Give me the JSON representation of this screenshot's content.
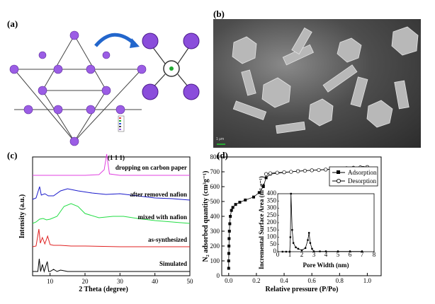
{
  "panels": {
    "a": "(a)",
    "b": "(b)",
    "c": "(c)",
    "d": "(d)"
  },
  "sem_scale": "1 μm",
  "chart_data": [
    {
      "type": "line",
      "panel": "c",
      "xlabel": "2 Theta (degree)",
      "ylabel": "Intensity (a.u.)",
      "xlim": [
        5,
        50
      ],
      "xticks": [
        10,
        20,
        30,
        40,
        50
      ],
      "series": [
        {
          "name": "dropping on carbon paper",
          "color": "#e040e0",
          "offset": 248,
          "x": [
            5,
            10,
            15,
            20,
            24,
            25.5,
            26.2,
            27,
            30,
            35,
            40,
            45,
            50
          ],
          "y": [
            0,
            0,
            0,
            0,
            1,
            8,
            30,
            2,
            0,
            0,
            0,
            0,
            0
          ]
        },
        {
          "name": "after removed nafion",
          "color": "#1a1acc",
          "offset": 286,
          "x": [
            5,
            6,
            7,
            7.5,
            8.5,
            9.5,
            11,
            13,
            15,
            18,
            22,
            26,
            30,
            35,
            40,
            45,
            50
          ],
          "y": [
            4,
            6,
            22,
            10,
            12,
            9,
            9,
            16,
            19,
            16,
            13,
            11,
            12,
            9,
            6,
            5,
            3
          ]
        },
        {
          "name": "mixed with nafion",
          "color": "#22dd44",
          "offset": 318,
          "x": [
            5,
            6,
            7,
            8,
            9,
            10,
            12,
            14,
            16,
            18,
            20,
            24,
            28,
            31,
            35,
            40,
            45,
            50
          ],
          "y": [
            2,
            4,
            8,
            9,
            7,
            8,
            12,
            26,
            30,
            26,
            16,
            10,
            12,
            12,
            9,
            6,
            4,
            2
          ]
        },
        {
          "name": "as-synthesized",
          "color": "#e02020",
          "offset": 350,
          "x": [
            5,
            6,
            6.8,
            7.2,
            7.8,
            8.5,
            9.3,
            10,
            11,
            13,
            16,
            20,
            30,
            40,
            50
          ],
          "y": [
            1,
            2,
            26,
            6,
            14,
            5,
            16,
            4,
            3,
            3,
            2,
            2,
            1,
            1,
            1
          ]
        },
        {
          "name": "Simulated",
          "color": "#000000",
          "offset": 384,
          "x": [
            5,
            6.5,
            6.9,
            7.3,
            7.8,
            8.3,
            9.2,
            9.6,
            10,
            11,
            12,
            13,
            15,
            20,
            30,
            40,
            50
          ],
          "y": [
            0,
            0,
            18,
            0,
            10,
            0,
            14,
            0,
            0,
            3,
            0,
            2,
            0,
            0,
            0,
            0,
            0
          ]
        }
      ],
      "annotations": [
        "(1 1 1)"
      ]
    },
    {
      "type": "scatter",
      "panel": "d",
      "xlabel": "Relative pressure (P/Po)",
      "ylabel": "N₂ adsorbed quantity (cm³g⁻¹)",
      "xlim": [
        -0.05,
        1.1
      ],
      "ylim": [
        0,
        800
      ],
      "xticks": [
        0.0,
        0.2,
        0.4,
        0.6,
        0.8,
        1.0
      ],
      "yticks": [
        0,
        100,
        200,
        300,
        400,
        500,
        600,
        700,
        800
      ],
      "series": [
        {
          "name": "Adsorption",
          "marker": "filled-square",
          "x": [
            0.0,
            0.0,
            0.001,
            0.002,
            0.003,
            0.005,
            0.008,
            0.012,
            0.02,
            0.03,
            0.05,
            0.08,
            0.12,
            0.18,
            0.22,
            0.25,
            0.27,
            0.3,
            0.4,
            0.5,
            0.6,
            0.7,
            0.8,
            0.9,
            0.97,
            1.0
          ],
          "y": [
            50,
            100,
            150,
            200,
            250,
            300,
            350,
            400,
            440,
            460,
            480,
            495,
            510,
            530,
            560,
            600,
            660,
            685,
            695,
            705,
            710,
            715,
            718,
            722,
            728,
            732
          ]
        },
        {
          "name": "Desorption",
          "marker": "open-circle",
          "x": [
            1.0,
            0.95,
            0.9,
            0.85,
            0.8,
            0.75,
            0.7,
            0.65,
            0.6,
            0.55,
            0.5,
            0.45,
            0.4,
            0.35,
            0.3,
            0.27
          ],
          "y": [
            732,
            730,
            727,
            724,
            721,
            718,
            715,
            712,
            710,
            707,
            704,
            700,
            697,
            694,
            690,
            685
          ]
        }
      ],
      "legend": "top-right",
      "inset": {
        "xlabel": "Pore Width (nm)",
        "ylabel": "Incremental Surface Area (m² g⁻¹)",
        "xlim": [
          0,
          8
        ],
        "ylim": [
          0,
          400
        ],
        "xticks": [
          0,
          1,
          2,
          3,
          4,
          5,
          6,
          7,
          8
        ],
        "yticks": [
          0,
          50,
          100,
          150,
          200,
          250,
          300,
          350,
          400
        ],
        "x": [
          0.4,
          0.7,
          1.0,
          1.05,
          1.1,
          1.2,
          1.3,
          1.5,
          1.7,
          2.0,
          2.3,
          2.5,
          2.6,
          2.7,
          2.85,
          3.0,
          3.5,
          4.0,
          5.0,
          6.0,
          7.0
        ],
        "y": [
          0,
          0,
          0,
          100,
          400,
          150,
          60,
          30,
          20,
          10,
          25,
          80,
          130,
          60,
          20,
          2,
          2,
          2,
          2,
          2,
          2
        ]
      }
    }
  ]
}
